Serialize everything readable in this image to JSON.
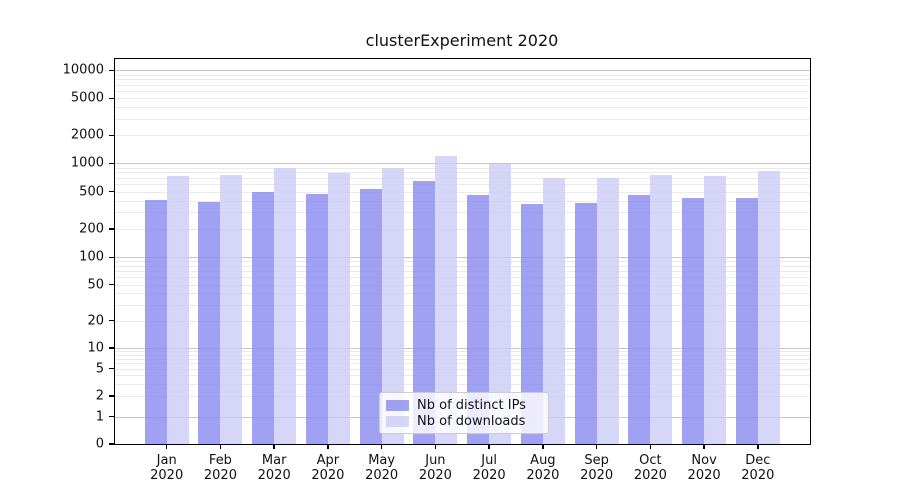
{
  "chart_data": {
    "type": "bar",
    "title": "clusterExperiment 2020",
    "xlabel": "",
    "ylabel": "",
    "scale": "symlog",
    "grid": true,
    "legend_position": "lower-center",
    "categories": [
      "Jan",
      "Feb",
      "Mar",
      "Apr",
      "May",
      "Jun",
      "Jul",
      "Aug",
      "Sep",
      "Oct",
      "Nov",
      "Dec"
    ],
    "year_label": "2020",
    "yticks": [
      0,
      1,
      2,
      5,
      10,
      20,
      50,
      100,
      200,
      500,
      1000,
      2000,
      5000,
      10000
    ],
    "ylim": [
      0,
      13000
    ],
    "series": [
      {
        "name": "Nb of distinct IPs",
        "color": "#8a8af0",
        "values": [
          410,
          390,
          500,
          475,
          530,
          645,
          465,
          370,
          380,
          465,
          430,
          430
        ]
      },
      {
        "name": "Nb of downloads",
        "color": "#cacaf6",
        "values": [
          730,
          745,
          890,
          780,
          890,
          1190,
          980,
          700,
          695,
          760,
          730,
          830
        ]
      }
    ],
    "colors": {
      "major_grid": "#c6c6c6",
      "minor_grid": "#eaeaea",
      "axis": "#000000",
      "text": "#111111"
    }
  }
}
